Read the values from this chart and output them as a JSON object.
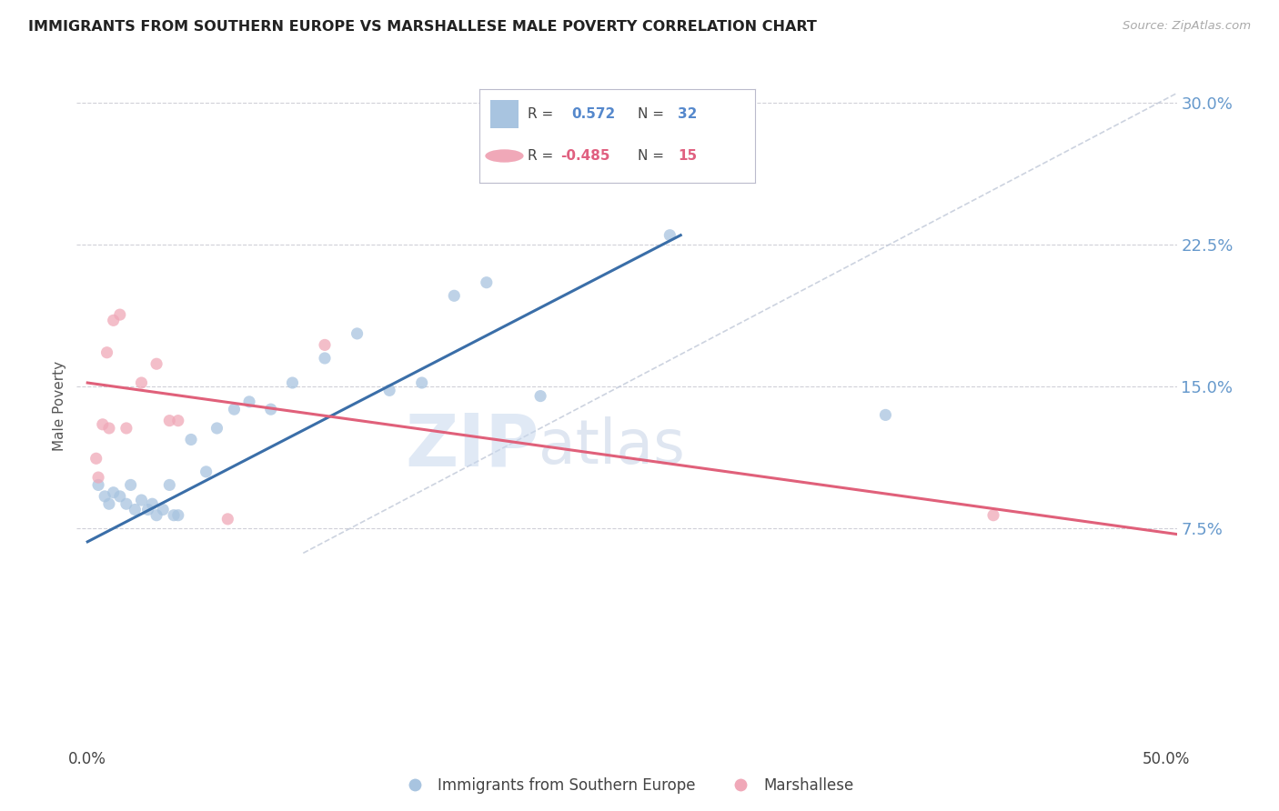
{
  "title": "IMMIGRANTS FROM SOUTHERN EUROPE VS MARSHALLESE MALE POVERTY CORRELATION CHART",
  "source": "Source: ZipAtlas.com",
  "ylabel": "Male Poverty",
  "legend_label1": "Immigrants from Southern Europe",
  "legend_label2": "Marshallese",
  "r1": 0.572,
  "n1": 32,
  "r2": -0.485,
  "n2": 15,
  "xlim": [
    -0.005,
    0.505
  ],
  "ylim": [
    -0.04,
    0.32
  ],
  "yticks": [
    0.075,
    0.15,
    0.225,
    0.3
  ],
  "ytick_labels": [
    "7.5%",
    "15.0%",
    "22.5%",
    "30.0%"
  ],
  "xticks": [
    0.0,
    0.5
  ],
  "xtick_labels": [
    "0.0%",
    "50.0%"
  ],
  "blue_color": "#a8c4e0",
  "blue_line_color": "#3a6ea8",
  "pink_color": "#f0a8b8",
  "pink_line_color": "#e0607a",
  "scatter_alpha": 0.75,
  "scatter_size": 90,
  "blue_scatter_x": [
    0.005,
    0.008,
    0.01,
    0.012,
    0.015,
    0.018,
    0.02,
    0.022,
    0.025,
    0.028,
    0.03,
    0.032,
    0.035,
    0.038,
    0.04,
    0.042,
    0.048,
    0.055,
    0.06,
    0.068,
    0.075,
    0.085,
    0.095,
    0.11,
    0.125,
    0.14,
    0.155,
    0.17,
    0.185,
    0.21,
    0.27,
    0.37
  ],
  "blue_scatter_y": [
    0.098,
    0.092,
    0.088,
    0.094,
    0.092,
    0.088,
    0.098,
    0.085,
    0.09,
    0.085,
    0.088,
    0.082,
    0.085,
    0.098,
    0.082,
    0.082,
    0.122,
    0.105,
    0.128,
    0.138,
    0.142,
    0.138,
    0.152,
    0.165,
    0.178,
    0.148,
    0.152,
    0.198,
    0.205,
    0.145,
    0.23,
    0.135
  ],
  "pink_scatter_x": [
    0.004,
    0.005,
    0.007,
    0.009,
    0.01,
    0.012,
    0.015,
    0.018,
    0.025,
    0.032,
    0.038,
    0.042,
    0.065,
    0.11,
    0.42
  ],
  "pink_scatter_y": [
    0.112,
    0.102,
    0.13,
    0.168,
    0.128,
    0.185,
    0.188,
    0.128,
    0.152,
    0.162,
    0.132,
    0.132,
    0.08,
    0.172,
    0.082
  ],
  "blue_line_x": [
    0.0,
    0.275
  ],
  "blue_line_y_start": 0.068,
  "blue_line_y_end": 0.23,
  "pink_line_x": [
    0.0,
    0.505
  ],
  "pink_line_y_start": 0.152,
  "pink_line_y_end": 0.072,
  "diag_line_x": [
    0.1,
    0.505
  ],
  "diag_line_y_start": 0.062,
  "diag_line_y_end": 0.305,
  "watermark_zip": "ZIP",
  "watermark_atlas": "atlas",
  "bg_color": "#ffffff",
  "grid_color": "#d0d0d8"
}
